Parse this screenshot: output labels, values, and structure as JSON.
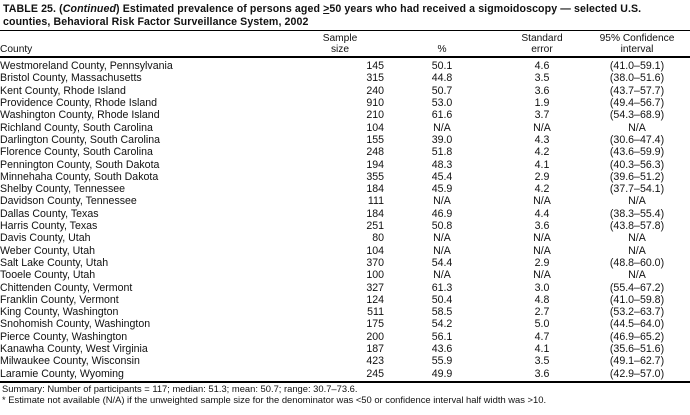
{
  "title": {
    "part1": "TABLE 25. (",
    "continued": "Continued",
    "part2": ") Estimated prevalence of persons aged ",
    "ge_symbol": ">",
    "part3": "50 years who had received a sigmoidoscopy — selected U.S. counties, Behavioral Risk Factor Surveillance System, 2002"
  },
  "table": {
    "columns": {
      "county": "County",
      "sample": [
        "Sample",
        "size"
      ],
      "percent": "%",
      "standard_error": [
        "Standard",
        "error"
      ],
      "confidence_interval": [
        "95% Confidence",
        "interval"
      ]
    },
    "rows": [
      {
        "county": "Westmoreland County, Pennsylvania",
        "sample_size": "145",
        "percent": "50.1",
        "standard_error": "4.6",
        "confidence_interval": "(41.0–59.1)"
      },
      {
        "county": "Bristol County, Massachusetts",
        "sample_size": "315",
        "percent": "44.8",
        "standard_error": "3.5",
        "confidence_interval": "(38.0–51.6)"
      },
      {
        "county": "Kent County, Rhode Island",
        "sample_size": "240",
        "percent": "50.7",
        "standard_error": "3.6",
        "confidence_interval": "(43.7–57.7)"
      },
      {
        "county": "Providence County, Rhode Island",
        "sample_size": "910",
        "percent": "53.0",
        "standard_error": "1.9",
        "confidence_interval": "(49.4–56.7)"
      },
      {
        "county": "Washington County, Rhode Island",
        "sample_size": "210",
        "percent": "61.6",
        "standard_error": "3.7",
        "confidence_interval": "(54.3–68.9)"
      },
      {
        "county": "Richland County, South Carolina",
        "sample_size": "104",
        "percent": "N/A",
        "standard_error": "N/A",
        "confidence_interval": "N/A"
      },
      {
        "county": "Darlington County, South Carolina",
        "sample_size": "155",
        "percent": "39.0",
        "standard_error": "4.3",
        "confidence_interval": "(30.6–47.4)"
      },
      {
        "county": "Florence County, South Carolina",
        "sample_size": "248",
        "percent": "51.8",
        "standard_error": "4.2",
        "confidence_interval": "(43.6–59.9)"
      },
      {
        "county": "Pennington County, South Dakota",
        "sample_size": "194",
        "percent": "48.3",
        "standard_error": "4.1",
        "confidence_interval": "(40.3–56.3)"
      },
      {
        "county": "Minnehaha County, South Dakota",
        "sample_size": "355",
        "percent": "45.4",
        "standard_error": "2.9",
        "confidence_interval": "(39.6–51.2)"
      },
      {
        "county": "Shelby County, Tennessee",
        "sample_size": "184",
        "percent": "45.9",
        "standard_error": "4.2",
        "confidence_interval": "(37.7–54.1)"
      },
      {
        "county": "Davidson County, Tennessee",
        "sample_size": "111",
        "percent": "N/A",
        "standard_error": "N/A",
        "confidence_interval": "N/A"
      },
      {
        "county": "Dallas County, Texas",
        "sample_size": "184",
        "percent": "46.9",
        "standard_error": "4.4",
        "confidence_interval": "(38.3–55.4)"
      },
      {
        "county": "Harris County, Texas",
        "sample_size": "251",
        "percent": "50.8",
        "standard_error": "3.6",
        "confidence_interval": "(43.8–57.8)"
      },
      {
        "county": "Davis County, Utah",
        "sample_size": "80",
        "percent": "N/A",
        "standard_error": "N/A",
        "confidence_interval": "N/A"
      },
      {
        "county": "Weber County, Utah",
        "sample_size": "104",
        "percent": "N/A",
        "standard_error": "N/A",
        "confidence_interval": "N/A"
      },
      {
        "county": "Salt Lake County, Utah",
        "sample_size": "370",
        "percent": "54.4",
        "standard_error": "2.9",
        "confidence_interval": "(48.8–60.0)"
      },
      {
        "county": "Tooele County, Utah",
        "sample_size": "100",
        "percent": "N/A",
        "standard_error": "N/A",
        "confidence_interval": "N/A"
      },
      {
        "county": "Chittenden County, Vermont",
        "sample_size": "327",
        "percent": "61.3",
        "standard_error": "3.0",
        "confidence_interval": "(55.4–67.2)"
      },
      {
        "county": "Franklin County, Vermont",
        "sample_size": "124",
        "percent": "50.4",
        "standard_error": "4.8",
        "confidence_interval": "(41.0–59.8)"
      },
      {
        "county": "King County, Washington",
        "sample_size": "511",
        "percent": "58.5",
        "standard_error": "2.7",
        "confidence_interval": "(53.2–63.7)"
      },
      {
        "county": "Snohomish County, Washington",
        "sample_size": "175",
        "percent": "54.2",
        "standard_error": "5.0",
        "confidence_interval": "(44.5–64.0)"
      },
      {
        "county": "Pierce County, Washington",
        "sample_size": "200",
        "percent": "56.1",
        "standard_error": "4.7",
        "confidence_interval": "(46.9–65.2)"
      },
      {
        "county": "Kanawha County, West Virginia",
        "sample_size": "187",
        "percent": "43.6",
        "standard_error": "4.1",
        "confidence_interval": "(35.6–51.6)"
      },
      {
        "county": "Milwaukee County, Wisconsin",
        "sample_size": "423",
        "percent": "55.9",
        "standard_error": "3.5",
        "confidence_interval": "(49.1–62.7)"
      },
      {
        "county": "Laramie County, Wyoming",
        "sample_size": "245",
        "percent": "49.9",
        "standard_error": "3.6",
        "confidence_interval": "(42.9–57.0)"
      }
    ]
  },
  "footer": {
    "summary": "Summary: Number of participants = 117; median: 51.3; mean: 50.7; range: 30.7–73.6.",
    "footnote": "* Estimate not available (N/A) if the unweighted sample size for the denominator was <50 or confidence interval half width was >10."
  }
}
